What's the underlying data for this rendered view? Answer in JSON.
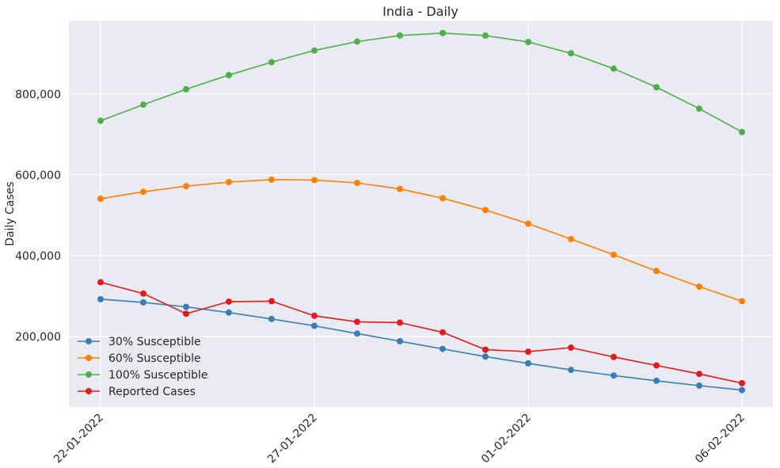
{
  "chart_data": {
    "type": "line",
    "title": "India - Daily",
    "xlabel": "",
    "ylabel": "Daily Cases",
    "x": [
      "22-01-2022",
      "23-01-2022",
      "24-01-2022",
      "25-01-2022",
      "26-01-2022",
      "27-01-2022",
      "28-01-2022",
      "29-01-2022",
      "30-01-2022",
      "31-01-2022",
      "01-02-2022",
      "02-02-2022",
      "03-02-2022",
      "04-02-2022",
      "05-02-2022",
      "06-02-2022"
    ],
    "x_tick_labels": [
      "22-01-2022",
      "27-01-2022",
      "01-02-2022",
      "06-02-2022"
    ],
    "y_tick_values": [
      200000,
      400000,
      600000,
      800000
    ],
    "y_tick_labels": [
      "200,000",
      "400,000",
      "600,000",
      "800,000"
    ],
    "ylim": [
      25000,
      982000
    ],
    "grid": true,
    "legend_position": "lower-left",
    "series": [
      {
        "name": "30% Susceptible",
        "color": "#377eb8",
        "values": [
          292000,
          284000,
          273000,
          259000,
          243000,
          226000,
          207000,
          188000,
          169000,
          150000,
          133000,
          117000,
          103000,
          90000,
          78000,
          67000
        ]
      },
      {
        "name": "60% Susceptible",
        "color": "#ff7f00",
        "values": [
          541000,
          558000,
          572000,
          582000,
          588000,
          587000,
          580000,
          565000,
          542000,
          513000,
          479000,
          441000,
          402000,
          362000,
          323000,
          287000
        ]
      },
      {
        "name": "100% Susceptible",
        "color": "#4daf4a",
        "values": [
          734000,
          774000,
          812000,
          847000,
          879000,
          908000,
          930000,
          945000,
          951000,
          945000,
          929000,
          901000,
          863000,
          817000,
          764000,
          706000
        ]
      },
      {
        "name": "Reported Cases",
        "color": "#e41a1c",
        "values": [
          334000,
          306000,
          256000,
          286000,
          287000,
          251000,
          236000,
          234000,
          210000,
          167000,
          162000,
          172000,
          149000,
          128000,
          107000,
          84000
        ]
      }
    ]
  }
}
